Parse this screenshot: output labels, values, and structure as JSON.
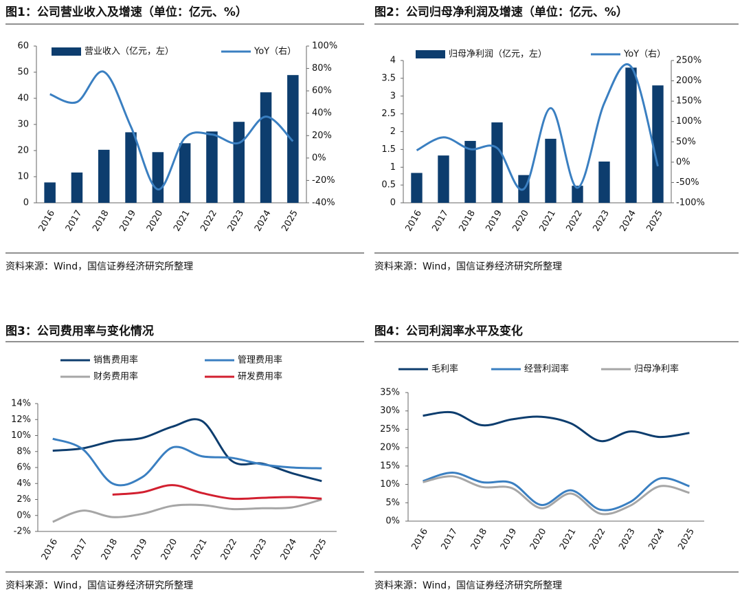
{
  "chart_data": [
    {
      "type": "combo",
      "title": "图1：公司营业收入及增速（单位：亿元、%）",
      "source": "资料来源：Wind，国信证券经济研究所整理",
      "categories": [
        "2016",
        "2017",
        "2018",
        "2019",
        "2020",
        "2021",
        "2022",
        "2023",
        "2024",
        "2025"
      ],
      "series": [
        {
          "name": "营业收入（亿元，左）",
          "type": "bar",
          "color": "#0d3d6e",
          "values": [
            7.8,
            11.6,
            20.3,
            27.0,
            19.4,
            22.8,
            27.3,
            31.0,
            42.3,
            48.9
          ]
        },
        {
          "name": "YoY（右）",
          "type": "line",
          "axis": "y2",
          "color": "#3a7fc1",
          "values": [
            57,
            50,
            77,
            28,
            -28,
            18,
            21,
            13.5,
            37,
            15
          ]
        }
      ],
      "ylim": [
        0,
        60
      ],
      "yticks": [
        0,
        10,
        20,
        30,
        40,
        50,
        60
      ],
      "y2lim": [
        -40,
        100
      ],
      "y2ticks": [
        {
          "value": -40,
          "label": "-40%"
        },
        {
          "value": -20,
          "label": "-20%"
        },
        {
          "value": 0,
          "label": "0%"
        },
        {
          "value": 20,
          "label": "20%"
        },
        {
          "value": 40,
          "label": "40%"
        },
        {
          "value": 60,
          "label": "60%"
        },
        {
          "value": 80,
          "label": "80%"
        },
        {
          "value": 100,
          "label": "100%"
        }
      ]
    },
    {
      "type": "combo",
      "title": "图2：公司归母净利润及增速（单位：亿元、%）",
      "source": "资料来源：Wind，国信证券经济研究所整理",
      "categories": [
        "2016",
        "2017",
        "2018",
        "2019",
        "2020",
        "2021",
        "2022",
        "2023",
        "2024",
        "2025"
      ],
      "series": [
        {
          "name": "归母净利润（亿元，左）",
          "type": "bar",
          "color": "#0d3d6e",
          "values": [
            0.84,
            1.33,
            1.74,
            2.26,
            0.78,
            1.8,
            0.48,
            1.16,
            3.8,
            3.3
          ]
        },
        {
          "name": "YoY（右）",
          "type": "line",
          "axis": "y2",
          "color": "#3a7fc1",
          "values": [
            29,
            61,
            32,
            35,
            -66,
            133,
            -63,
            145,
            235,
            -10
          ]
        }
      ],
      "ylim": [
        0,
        4
      ],
      "yticks": [
        0,
        0.5,
        1,
        1.5,
        2,
        2.5,
        3,
        3.5,
        4
      ],
      "y2lim": [
        -100,
        250
      ],
      "y2ticks": [
        {
          "value": -100,
          "label": "-100%"
        },
        {
          "value": -50,
          "label": "-50%"
        },
        {
          "value": 0,
          "label": "0%"
        },
        {
          "value": 50,
          "label": "50%"
        },
        {
          "value": 100,
          "label": "100%"
        },
        {
          "value": 150,
          "label": "150%"
        },
        {
          "value": 200,
          "label": "200%"
        },
        {
          "value": 250,
          "label": "250%"
        }
      ]
    },
    {
      "type": "line",
      "title": "图3：公司费用率与变化情况",
      "source": "资料来源：Wind，国信证券经济研究所整理",
      "categories": [
        "2016",
        "2017",
        "2018",
        "2019",
        "2020",
        "2021",
        "2022",
        "2023",
        "2024",
        "2025"
      ],
      "series": [
        {
          "name": "销售费用率",
          "color": "#0d3d6e",
          "values": [
            8.1,
            8.4,
            9.3,
            9.7,
            11.1,
            11.8,
            6.8,
            6.5,
            5.3,
            4.3
          ]
        },
        {
          "name": "管理费用率",
          "color": "#3a7fc1",
          "values": [
            9.6,
            8.3,
            4.0,
            4.8,
            8.5,
            7.4,
            7.2,
            6.4,
            6.0,
            5.9
          ]
        },
        {
          "name": "财务费用率",
          "color": "#a6a6a6",
          "values": [
            -0.8,
            0.6,
            -0.2,
            0.2,
            1.2,
            1.3,
            0.8,
            0.9,
            1.0,
            2.0
          ]
        },
        {
          "name": "研发费用率",
          "color": "#d21f2f",
          "values": [
            null,
            null,
            2.6,
            2.9,
            3.8,
            2.8,
            2.1,
            2.2,
            2.3,
            2.1
          ]
        }
      ],
      "ylim": [
        -2,
        14
      ],
      "yticks": [
        {
          "value": -2,
          "label": "-2%"
        },
        {
          "value": 0,
          "label": "0%"
        },
        {
          "value": 2,
          "label": "2%"
        },
        {
          "value": 4,
          "label": "4%"
        },
        {
          "value": 6,
          "label": "6%"
        },
        {
          "value": 8,
          "label": "8%"
        },
        {
          "value": 10,
          "label": "10%"
        },
        {
          "value": 12,
          "label": "12%"
        },
        {
          "value": 14,
          "label": "14%"
        }
      ]
    },
    {
      "type": "line",
      "title": "图4：公司利润率水平及变化",
      "source": "资料来源：Wind，国信证券经济研究所整理",
      "categories": [
        "2016",
        "2017",
        "2018",
        "2019",
        "2020",
        "2021",
        "2022",
        "2023",
        "2024",
        "2025"
      ],
      "series": [
        {
          "name": "毛利率",
          "color": "#0d3d6e",
          "values": [
            28.7,
            29.6,
            26.1,
            27.7,
            28.4,
            26.6,
            21.8,
            24.4,
            22.9,
            24.0
          ]
        },
        {
          "name": "经营利润率",
          "color": "#3a7fc1",
          "values": [
            10.9,
            13.2,
            10.6,
            10.4,
            4.4,
            8.4,
            3.1,
            5.2,
            11.6,
            9.5
          ]
        },
        {
          "name": "归母净利率",
          "color": "#a6a6a6",
          "values": [
            10.6,
            12.2,
            9.3,
            9.0,
            3.5,
            7.5,
            2.0,
            4.2,
            9.5,
            7.7
          ]
        }
      ],
      "ylim": [
        0,
        35
      ],
      "yticks": [
        {
          "value": 0,
          "label": "0%"
        },
        {
          "value": 5,
          "label": "5%"
        },
        {
          "value": 10,
          "label": "10%"
        },
        {
          "value": 15,
          "label": "15%"
        },
        {
          "value": 20,
          "label": "20%"
        },
        {
          "value": 25,
          "label": "25%"
        },
        {
          "value": 30,
          "label": "30%"
        },
        {
          "value": 35,
          "label": "35%"
        }
      ]
    }
  ]
}
